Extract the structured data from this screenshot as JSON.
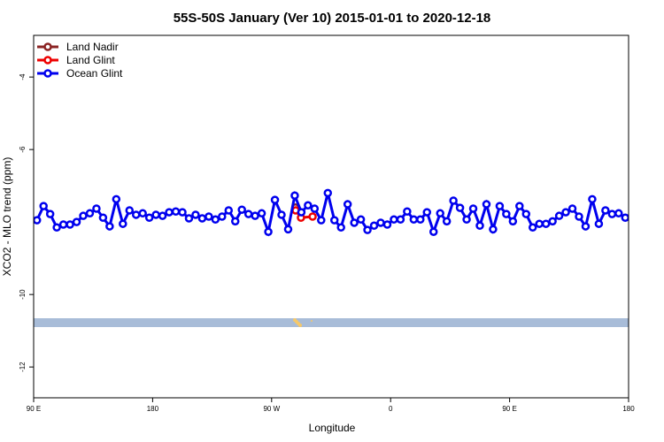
{
  "chart_data": {
    "type": "line",
    "title": "55S-50S January (Ver 10)   2015-01-01 to 2020-12-18",
    "xlabel": "Longitude",
    "ylabel": "XCO2 - MLO trend (ppm)",
    "xlim": [
      90,
      540
    ],
    "ylim": [
      -12.85,
      -2.85
    ],
    "xticks": [
      {
        "value": 90,
        "label": "90 E"
      },
      180,
      {
        "value": 270,
        "label": "90 W"
      },
      {
        "value": 360,
        "label": "0"
      },
      {
        "value": 450,
        "label": "90 E"
      },
      {
        "value": 540,
        "label": "180"
      }
    ],
    "yticks": [
      -4,
      -6,
      -10,
      -12
    ],
    "legend": "top-left",
    "series": [
      {
        "name": "Land Nadir",
        "color": "#8b2323",
        "x": [
          288
        ],
        "values": [
          -7.6
        ]
      },
      {
        "name": "Land Glint",
        "color": "#ee0000",
        "x": [
          288.2,
          292.2,
          301
        ],
        "values": [
          -7.68,
          -7.88,
          -7.85
        ]
      },
      {
        "name": "Ocean Glint",
        "color": "#0000ee",
        "x": [
          92.5,
          97.5,
          102.5,
          107.5,
          112.5,
          117.5,
          122.5,
          127.5,
          132.5,
          137.5,
          142.5,
          147.5,
          152.5,
          157.5,
          162.5,
          167.5,
          172.5,
          177.5,
          182.5,
          187.5,
          192.5,
          197.5,
          202.5,
          207.5,
          212.5,
          217.5,
          222.5,
          227.5,
          232.5,
          237.5,
          242.5,
          247.5,
          252.5,
          257.5,
          262.5,
          267.5,
          272.5,
          277.5,
          282.5,
          287.5,
          292.5,
          297.5,
          302.5,
          307.5,
          312.5,
          317.5,
          322.5,
          327.5,
          332.5,
          337.5,
          342.5,
          347.5,
          352.5,
          357.5,
          362.5,
          367.5,
          372.5,
          377.5,
          382.5,
          387.5,
          392.5,
          397.5,
          402.5,
          407.5,
          412.5,
          417.5,
          422.5,
          427.5,
          432.5,
          437.5,
          442.5,
          447.5,
          452.5,
          457.5,
          462.5,
          467.5,
          472.5,
          477.5,
          482.5,
          487.5,
          492.5,
          497.5,
          502.5,
          507.5,
          512.5,
          517.5,
          522.5,
          527.5,
          532.5,
          537.5
        ],
        "values": [
          -7.95,
          -7.56,
          -7.78,
          -8.15,
          -8.07,
          -8.07,
          -8.0,
          -7.83,
          -7.76,
          -7.63,
          -7.88,
          -8.12,
          -7.37,
          -8.05,
          -7.68,
          -7.8,
          -7.76,
          -7.88,
          -7.8,
          -7.83,
          -7.73,
          -7.71,
          -7.73,
          -7.9,
          -7.8,
          -7.9,
          -7.85,
          -7.93,
          -7.85,
          -7.68,
          -7.98,
          -7.66,
          -7.78,
          -7.83,
          -7.76,
          -8.27,
          -7.39,
          -7.8,
          -8.2,
          -7.27,
          -7.73,
          -7.54,
          -7.63,
          -7.95,
          -7.2,
          -7.95,
          -8.15,
          -7.51,
          -8.02,
          -7.93,
          -8.22,
          -8.1,
          -8.02,
          -8.07,
          -7.93,
          -7.93,
          -7.71,
          -7.93,
          -7.93,
          -7.73,
          -8.27,
          -7.76,
          -7.98,
          -7.41,
          -7.61,
          -7.93,
          -7.63,
          -8.1,
          -7.51,
          -8.2,
          -7.56,
          -7.78,
          -7.98,
          -7.56,
          -7.78,
          -8.15,
          -8.05,
          -8.05,
          -7.98,
          -7.83,
          -7.73,
          -7.63,
          -7.85,
          -8.12,
          -7.37,
          -8.05,
          -7.68,
          -7.78,
          -7.76,
          -7.88
        ]
      }
    ]
  }
}
